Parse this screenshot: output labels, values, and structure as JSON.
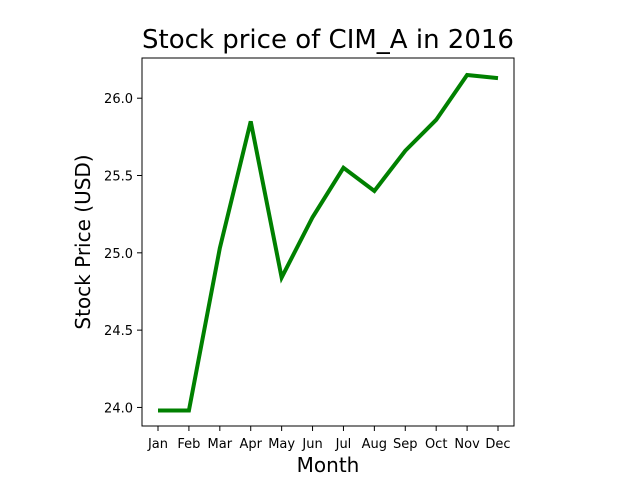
{
  "chart_data": {
    "type": "line",
    "title": "Stock price of CIM_A in 2016",
    "xlabel": "Month",
    "ylabel": "Stock Price (USD)",
    "categories": [
      "Jan",
      "Feb",
      "Mar",
      "Apr",
      "May",
      "Jun",
      "Jul",
      "Aug",
      "Sep",
      "Oct",
      "Nov",
      "Dec"
    ],
    "series": [
      {
        "values": [
          23.98,
          23.98,
          25.03,
          25.85,
          24.84,
          25.23,
          25.55,
          25.4,
          25.66,
          25.86,
          26.15,
          26.13
        ],
        "color": "#008000"
      }
    ],
    "yticks": [
      "24.0",
      "24.5",
      "25.0",
      "25.5",
      "26.0"
    ],
    "ylim": [
      23.88,
      26.26
    ],
    "grid": false,
    "legend": "none"
  }
}
